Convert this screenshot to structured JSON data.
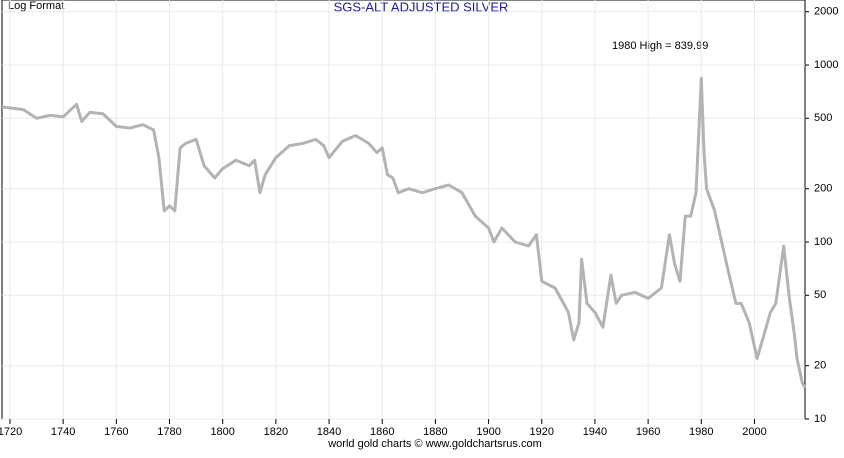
{
  "chart_data": {
    "type": "line",
    "title": "SGS-ALT ADJUSTED  SILVER",
    "subtitle": "Log Format",
    "annotation": "1980 High = 839.99",
    "footer": "world gold charts © www.goldchartsrus.com",
    "log_y": true,
    "grid": true,
    "xlim": [
      1717,
      2019
    ],
    "xticks": [
      1720,
      1740,
      1760,
      1780,
      1800,
      1820,
      1840,
      1860,
      1880,
      1900,
      1920,
      1940,
      1960,
      1980,
      2000
    ],
    "ylim": [
      10,
      2330
    ],
    "yticks": [
      10,
      20,
      50,
      100,
      200,
      500,
      1000,
      2000
    ],
    "x": [
      1717,
      1725,
      1730,
      1735,
      1740,
      1745,
      1747,
      1750,
      1755,
      1760,
      1765,
      1770,
      1774,
      1776,
      1778,
      1780,
      1782,
      1784,
      1786,
      1790,
      1793,
      1797,
      1800,
      1805,
      1810,
      1812,
      1814,
      1816,
      1820,
      1825,
      1830,
      1835,
      1838,
      1840,
      1845,
      1850,
      1855,
      1858,
      1860,
      1862,
      1864,
      1866,
      1870,
      1875,
      1880,
      1885,
      1890,
      1895,
      1900,
      1902,
      1905,
      1910,
      1915,
      1918,
      1920,
      1925,
      1930,
      1932,
      1934,
      1935,
      1937,
      1940,
      1943,
      1946,
      1948,
      1950,
      1955,
      1960,
      1965,
      1968,
      1970,
      1972,
      1974,
      1976,
      1978,
      1980,
      1981,
      1982,
      1985,
      1990,
      1993,
      1995,
      1998,
      2001,
      2003,
      2006,
      2008,
      2011,
      2013,
      2015,
      2016,
      2018,
      2019
    ],
    "series": [
      {
        "name": "SGS-ALT ADJUSTED  SILVER",
        "color": "#b3b3b3",
        "values": [
          580,
          560,
          500,
          520,
          510,
          600,
          480,
          540,
          530,
          450,
          440,
          460,
          430,
          300,
          150,
          160,
          150,
          340,
          360,
          380,
          270,
          230,
          260,
          290,
          270,
          290,
          190,
          240,
          300,
          350,
          360,
          380,
          350,
          300,
          370,
          400,
          360,
          320,
          340,
          240,
          230,
          190,
          200,
          190,
          200,
          210,
          190,
          140,
          120,
          100,
          120,
          100,
          95,
          110,
          60,
          55,
          40,
          28,
          35,
          80,
          45,
          40,
          33,
          65,
          45,
          50,
          52,
          48,
          55,
          110,
          75,
          60,
          140,
          140,
          190,
          839.99,
          320,
          200,
          150,
          70,
          45,
          45,
          35,
          22,
          28,
          40,
          45,
          95,
          50,
          30,
          22,
          16,
          15
        ]
      }
    ]
  }
}
